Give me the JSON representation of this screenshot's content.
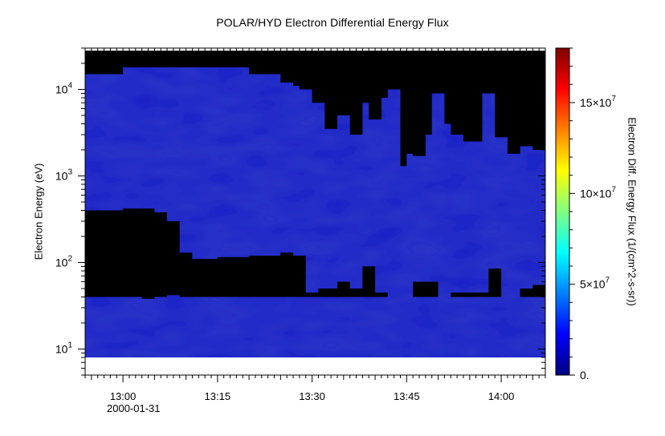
{
  "chart_data": {
    "type": "heatmap",
    "title": "POLAR/HYD  Electron Differential Energy Flux",
    "xlabel": "",
    "date_label": "2000-01-31",
    "ylabel": "Electron Energy (eV)",
    "colorbar_label": "Electron Diff. Energy Flux (1/(cm^2-s-sr))",
    "x_ticks": [
      "13:00",
      "13:15",
      "13:30",
      "13:45",
      "14:00"
    ],
    "x_range": [
      "12:54",
      "14:07"
    ],
    "y_scale": "log",
    "y_ticks": [
      {
        "base": "10",
        "exp": "1",
        "value": 10
      },
      {
        "base": "10",
        "exp": "2",
        "value": 100
      },
      {
        "base": "10",
        "exp": "3",
        "value": 1000
      },
      {
        "base": "10",
        "exp": "4",
        "value": 10000
      }
    ],
    "y_range": [
      5,
      30000
    ],
    "data_energy_range": [
      8,
      28000
    ],
    "colorbar_range": [
      0,
      180000000
    ],
    "colorbar_ticks": [
      {
        "label": "0.",
        "value": 0
      },
      {
        "label": "5×10",
        "exp": "7",
        "value": 50000000
      },
      {
        "label": "10×10",
        "exp": "7",
        "value": 100000000
      },
      {
        "label": "15×10",
        "exp": "7",
        "value": 150000000
      }
    ],
    "colormap": [
      "#000080",
      "#0000ff",
      "#0080ff",
      "#00ffff",
      "#80ff80",
      "#ffff00",
      "#ff8000",
      "#ff0000",
      "#800000"
    ],
    "fill_value_color": "#000000",
    "typical_flux_color": "#1c22c8",
    "upper_flux_boundary": {
      "times": [
        "12:54",
        "13:00",
        "13:09",
        "13:14",
        "13:20",
        "13:25",
        "13:27",
        "13:28",
        "13:30",
        "13:32",
        "13:34",
        "13:36",
        "13:38",
        "13:39",
        "13:41",
        "13:42",
        "13:44",
        "13:45",
        "13:46",
        "13:48",
        "13:49",
        "13:51",
        "13:52",
        "13:54",
        "13:56",
        "13:57",
        "13:59",
        "14:01",
        "14:03",
        "14:05",
        "14:07"
      ],
      "energy_eV": [
        15000,
        18000,
        18000,
        18000,
        15000,
        12000,
        11000,
        10000,
        7000,
        3500,
        5000,
        3000,
        7000,
        4500,
        8000,
        10000,
        1300,
        1800,
        1700,
        3000,
        9000,
        4000,
        3000,
        2500,
        2500,
        9000,
        2800,
        1800,
        2200,
        2000,
        1500
      ]
    },
    "low_energy_gap": {
      "times": [
        "12:54",
        "13:00",
        "13:03",
        "13:05",
        "13:07",
        "13:09",
        "13:11",
        "13:15",
        "13:20",
        "13:25",
        "13:27",
        "13:29",
        "13:31",
        "13:34",
        "13:36",
        "13:38",
        "13:40",
        "13:42",
        "13:44",
        "13:46",
        "13:50",
        "13:52",
        "13:56",
        "13:58",
        "14:00",
        "14:03",
        "14:05",
        "14:07"
      ],
      "top_eV": [
        400,
        420,
        420,
        380,
        300,
        130,
        110,
        115,
        120,
        130,
        120,
        45,
        50,
        60,
        50,
        90,
        45,
        20,
        20,
        60,
        40,
        45,
        45,
        85,
        40,
        50,
        55,
        50
      ],
      "bottom_eV": [
        40,
        40,
        38,
        40,
        42,
        40,
        40,
        40,
        40,
        40,
        40,
        40,
        40,
        40,
        40,
        40,
        40,
        20,
        20,
        40,
        40,
        40,
        40,
        40,
        40,
        40,
        40,
        40
      ]
    }
  }
}
